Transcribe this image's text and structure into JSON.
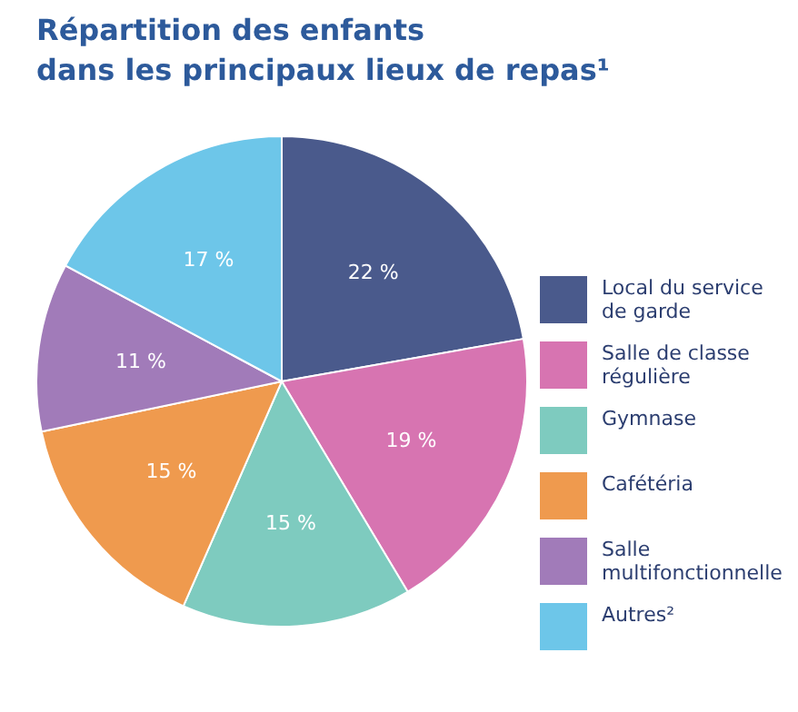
{
  "chart_data": {
    "type": "pie",
    "title": "Répartition des enfants\ndans les principaux lieux de repas¹",
    "categories": [
      "Local du service de garde",
      "Salle de classe régulière",
      "Gymnase",
      "Cafétéria",
      "Salle multifonctionnelle",
      "Autres²"
    ],
    "values": [
      22,
      19,
      15,
      15,
      11,
      17
    ],
    "value_labels": [
      "22 %",
      "19 %",
      "15 %",
      "15 %",
      "11 %",
      "17 %"
    ],
    "colors": [
      "#4a5a8c",
      "#d774b1",
      "#7ecbbf",
      "#ef9a4e",
      "#a17bb9",
      "#6dc6e9"
    ],
    "legend": "right"
  }
}
